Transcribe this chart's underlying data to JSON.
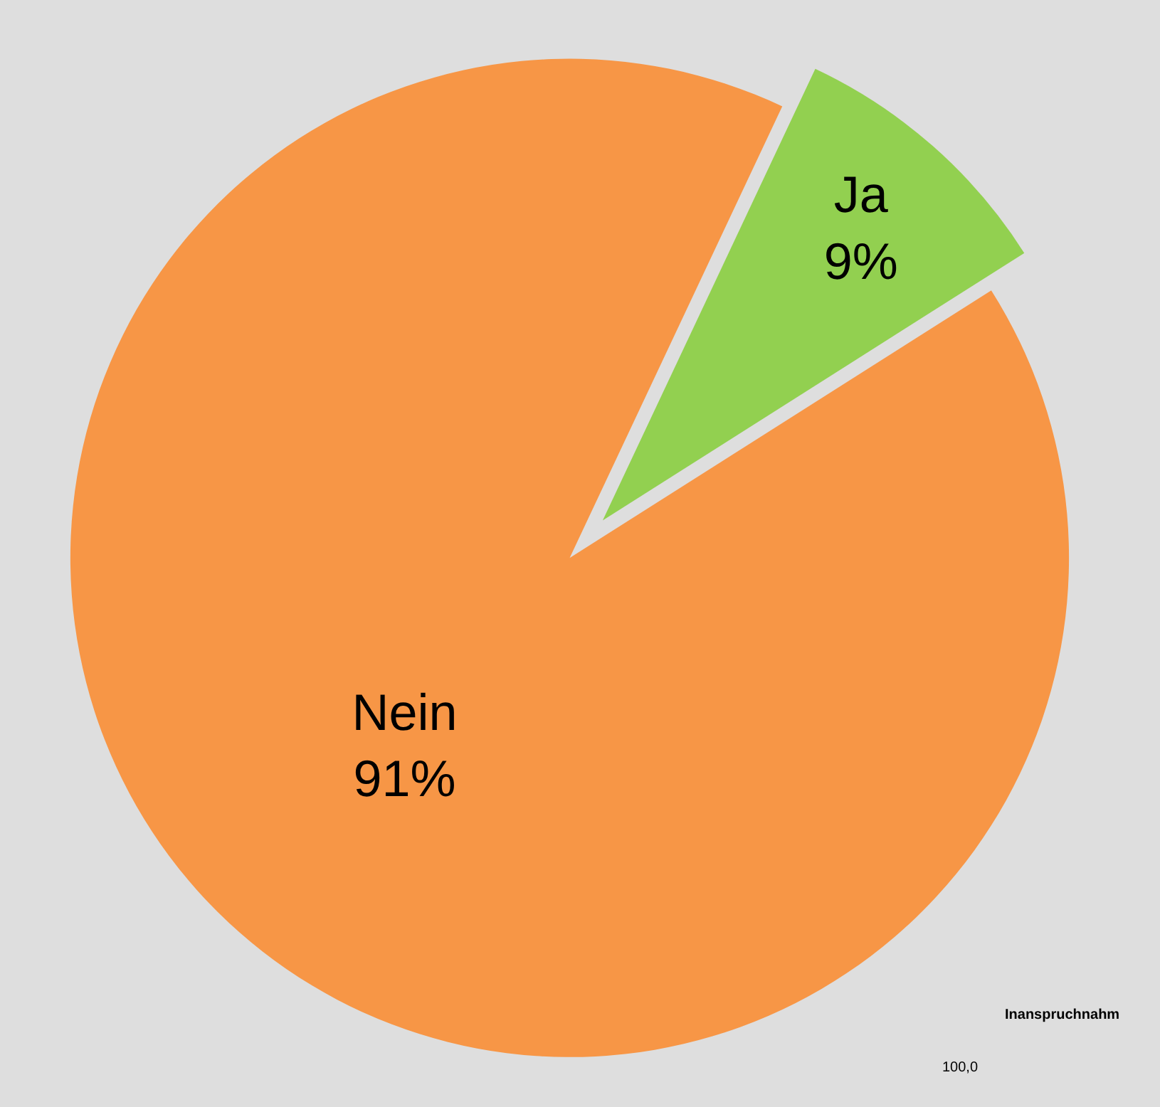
{
  "chart_data": [
    {
      "type": "pie",
      "categories": [
        "Nein",
        "Ja"
      ],
      "values": [
        91,
        9
      ],
      "value_labels": [
        "91%",
        "9%"
      ],
      "colors": [
        "#f79646",
        "#92d050"
      ]
    },
    {
      "type": "other",
      "title": "Inanspruchnahm",
      "annotations": [
        "100,0"
      ]
    }
  ]
}
